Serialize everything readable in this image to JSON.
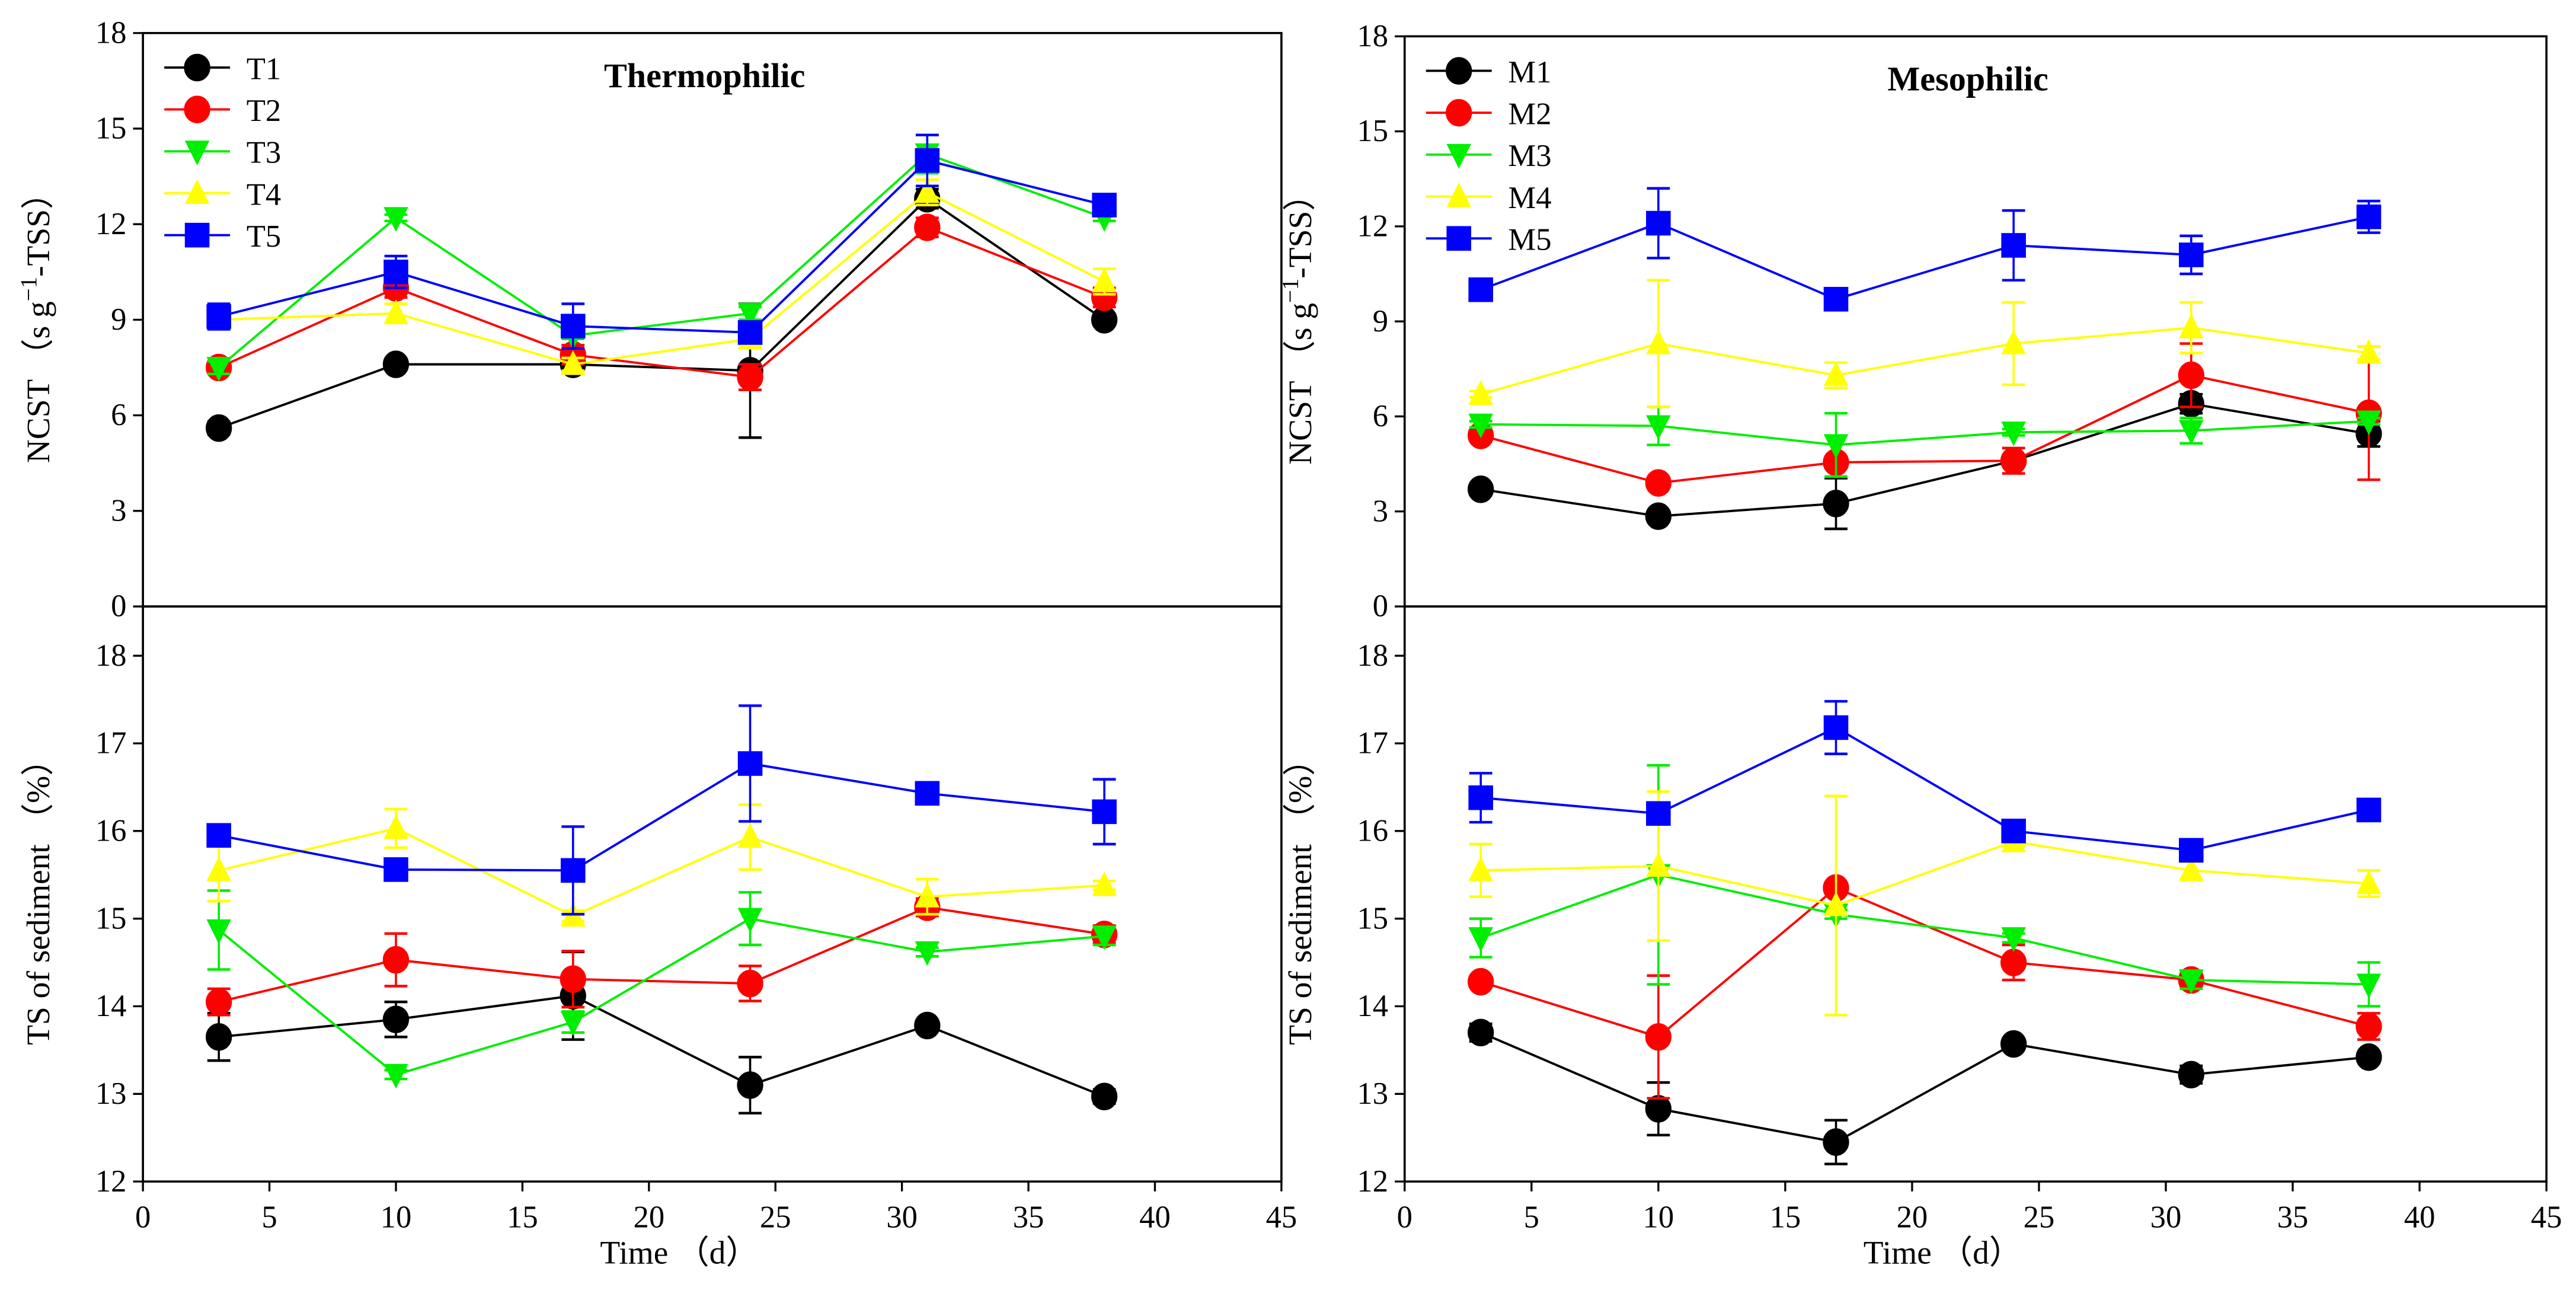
{
  "chart_data": [
    {
      "type": "line",
      "panel": "top-left",
      "title": "Thermophilic",
      "ylabel": {
        "main": "NCST （s g",
        "sup": "−1",
        "suffix": "-TSS）"
      },
      "xlabel": "",
      "ylim": [
        0,
        18
      ],
      "yticks": [
        "0",
        "3",
        "6",
        "9",
        "12",
        "15",
        "18"
      ],
      "xlim": [
        0,
        45
      ],
      "xticks": [],
      "legend": "top-left",
      "x": [
        3,
        10,
        17,
        24,
        31,
        38
      ],
      "series": [
        {
          "name": "T1",
          "color": "#000000",
          "marker": "circle",
          "values": [
            5.6,
            7.6,
            7.6,
            7.4,
            12.8,
            9.0
          ],
          "errors": [
            0.2,
            0.1,
            0.2,
            2.1,
            0.3,
            0.1
          ]
        },
        {
          "name": "T2",
          "color": "#ff0000",
          "marker": "circle",
          "values": [
            7.5,
            10.0,
            7.9,
            7.2,
            11.9,
            9.7
          ],
          "errors": [
            0.2,
            0.3,
            0.3,
            0.4,
            0.3,
            0.3
          ]
        },
        {
          "name": "T3",
          "color": "#00ee00",
          "marker": "triangle-down",
          "values": [
            7.5,
            12.2,
            8.5,
            9.2,
            14.2,
            12.2
          ],
          "errors": [
            0.2,
            0.1,
            0.1,
            0.2,
            0.6,
            0.1
          ]
        },
        {
          "name": "T4",
          "color": "#ffff00",
          "marker": "triangle-up",
          "values": [
            9.0,
            9.2,
            7.6,
            8.4,
            13.0,
            10.2
          ],
          "errors": [
            0.2,
            0.3,
            0.2,
            0.2,
            0.4,
            0.4
          ]
        },
        {
          "name": "T5",
          "color": "#0000ff",
          "marker": "square",
          "values": [
            9.1,
            10.5,
            8.8,
            8.6,
            14.0,
            12.6
          ],
          "errors": [
            0.4,
            0.5,
            0.7,
            0.2,
            0.8,
            0.3
          ]
        }
      ]
    },
    {
      "type": "line",
      "panel": "top-right",
      "title": "Mesophilic",
      "ylabel": {
        "main": "NCST （s g",
        "sup": "−1",
        "suffix": "-TSS）"
      },
      "xlabel": "",
      "ylim": [
        0,
        18
      ],
      "yticks": [
        "0",
        "3",
        "6",
        "9",
        "12",
        "15",
        "18"
      ],
      "xlim": [
        0,
        45
      ],
      "xticks": [],
      "legend": "top-left",
      "x": [
        3,
        10,
        17,
        24,
        31,
        38
      ],
      "series": [
        {
          "name": "M1",
          "color": "#000000",
          "marker": "circle",
          "values": [
            3.7,
            2.85,
            3.25,
            4.6,
            6.4,
            5.45
          ],
          "errors": [
            0.1,
            0.1,
            0.8,
            0.1,
            0.3,
            0.4
          ]
        },
        {
          "name": "M2",
          "color": "#ff0000",
          "marker": "circle",
          "values": [
            5.4,
            3.9,
            4.55,
            4.6,
            7.3,
            6.1
          ],
          "errors": [
            0.1,
            0.1,
            0.1,
            0.4,
            1.0,
            2.1
          ]
        },
        {
          "name": "M3",
          "color": "#00ee00",
          "marker": "triangle-down",
          "values": [
            5.75,
            5.7,
            5.1,
            5.5,
            5.55,
            5.85
          ],
          "errors": [
            0.1,
            0.6,
            1.0,
            0.1,
            0.4,
            0.1
          ]
        },
        {
          "name": "M4",
          "color": "#ffff00",
          "marker": "triangle-up",
          "values": [
            6.7,
            8.3,
            7.3,
            8.3,
            8.8,
            8.0
          ],
          "errors": [
            0.1,
            2.0,
            0.4,
            1.3,
            0.8,
            0.2
          ]
        },
        {
          "name": "M5",
          "color": "#0000ff",
          "marker": "square",
          "values": [
            10.0,
            12.1,
            9.7,
            11.4,
            11.1,
            12.3
          ],
          "errors": [
            0.1,
            1.1,
            0.2,
            1.1,
            0.6,
            0.5
          ]
        }
      ]
    },
    {
      "type": "line",
      "panel": "bottom-left",
      "title": "",
      "ylabel": {
        "main": "TS of sediment （%）",
        "sup": "",
        "suffix": ""
      },
      "xlabel": "Time （d）",
      "ylim": [
        12,
        18
      ],
      "yticks": [
        "12",
        "13",
        "14",
        "15",
        "16",
        "17",
        "18"
      ],
      "xlim": [
        0,
        45
      ],
      "xticks": [
        "0",
        "5",
        "10",
        "15",
        "20",
        "25",
        "30",
        "35",
        "40",
        "45"
      ],
      "legend": "none",
      "x": [
        3,
        10,
        17,
        24,
        31,
        38
      ],
      "series": [
        {
          "name": "T1",
          "color": "#000000",
          "marker": "circle",
          "values": [
            13.65,
            13.85,
            14.12,
            13.1,
            13.78,
            12.97
          ],
          "errors": [
            0.27,
            0.2,
            0.5,
            0.32,
            0.05,
            0.08
          ]
        },
        {
          "name": "T2",
          "color": "#ff0000",
          "marker": "circle",
          "values": [
            14.05,
            14.53,
            14.31,
            14.26,
            15.13,
            14.82
          ],
          "errors": [
            0.15,
            0.3,
            0.32,
            0.2,
            0.1,
            0.1
          ]
        },
        {
          "name": "T3",
          "color": "#00ee00",
          "marker": "triangle-down",
          "values": [
            14.87,
            13.22,
            13.82,
            15.0,
            14.62,
            14.8
          ],
          "errors": [
            0.45,
            0.05,
            0.12,
            0.3,
            0.05,
            0.1
          ]
        },
        {
          "name": "T4",
          "color": "#ffff00",
          "marker": "triangle-up",
          "values": [
            15.55,
            16.03,
            15.03,
            15.93,
            15.25,
            15.38
          ],
          "errors": [
            0.35,
            0.22,
            0.06,
            0.37,
            0.2,
            0.05
          ]
        },
        {
          "name": "T5",
          "color": "#0000ff",
          "marker": "square",
          "values": [
            15.95,
            15.56,
            15.55,
            16.77,
            16.43,
            16.22
          ],
          "errors": [
            0.08,
            0.08,
            0.5,
            0.66,
            0.1,
            0.37
          ]
        }
      ]
    },
    {
      "type": "line",
      "panel": "bottom-right",
      "title": "",
      "ylabel": {
        "main": "TS of sediment （%）",
        "sup": "",
        "suffix": ""
      },
      "xlabel": "Time （d）",
      "ylim": [
        12,
        18
      ],
      "yticks": [
        "12",
        "13",
        "14",
        "15",
        "16",
        "17",
        "18"
      ],
      "xlim": [
        0,
        45
      ],
      "xticks": [
        "0",
        "5",
        "10",
        "15",
        "20",
        "25",
        "30",
        "35",
        "40",
        "45"
      ],
      "legend": "none",
      "x": [
        3,
        10,
        17,
        24,
        31,
        38
      ],
      "series": [
        {
          "name": "M1",
          "color": "#000000",
          "marker": "circle",
          "values": [
            13.7,
            12.83,
            12.45,
            13.57,
            13.22,
            13.42
          ],
          "errors": [
            0.1,
            0.3,
            0.25,
            0.05,
            0.1,
            0.05
          ]
        },
        {
          "name": "M2",
          "color": "#ff0000",
          "marker": "circle",
          "values": [
            14.28,
            13.65,
            15.35,
            14.5,
            14.3,
            13.77
          ],
          "errors": [
            0.05,
            0.7,
            0.05,
            0.2,
            0.08,
            0.15
          ]
        },
        {
          "name": "M3",
          "color": "#00ee00",
          "marker": "triangle-down",
          "values": [
            14.78,
            15.5,
            15.05,
            14.78,
            14.3,
            14.25
          ],
          "errors": [
            0.22,
            1.25,
            0.05,
            0.05,
            0.1,
            0.25
          ]
        },
        {
          "name": "M4",
          "color": "#ffff00",
          "marker": "triangle-up",
          "values": [
            15.55,
            15.6,
            15.15,
            15.88,
            15.55,
            15.4
          ],
          "errors": [
            0.3,
            0.85,
            1.25,
            0.05,
            0.1,
            0.15
          ]
        },
        {
          "name": "M5",
          "color": "#0000ff",
          "marker": "square",
          "values": [
            16.38,
            16.2,
            17.18,
            16.0,
            15.78,
            16.24
          ],
          "errors": [
            0.28,
            0.08,
            0.3,
            0.05,
            0.05,
            0.05
          ]
        }
      ]
    }
  ]
}
